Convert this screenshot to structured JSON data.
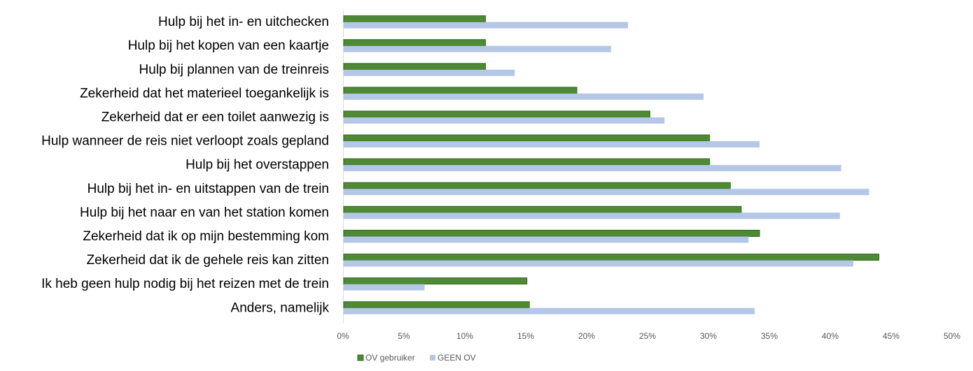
{
  "chart_data": {
    "type": "bar",
    "orientation": "horizontal",
    "categories": [
      "Hulp bij het in- en uitchecken",
      "Hulp bij het kopen van een kaartje",
      "Hulp bij plannen van de treinreis",
      "Zekerheid dat het materieel toegankelijk is",
      "Zekerheid dat er een toilet aanwezig is",
      "Hulp wanneer de reis niet verloopt zoals gepland",
      "Hulp bij het overstappen",
      "Hulp bij het in- en uitstappen van de trein",
      "Hulp bij het naar en van het station komen",
      "Zekerheid dat ik op mijn bestemming kom",
      "Zekerheid dat ik de gehele reis kan zitten",
      "Ik heb geen hulp nodig bij het reizen met de trein",
      "Anders, namelijk"
    ],
    "series": [
      {
        "name": "OV gebruiker",
        "color": "#4e8a34",
        "values": [
          11.7,
          11.7,
          11.7,
          19.2,
          25.2,
          30.1,
          30.1,
          31.8,
          32.7,
          34.2,
          44.0,
          15.1,
          15.3
        ]
      },
      {
        "name": "GEEN OV",
        "color": "#b4c7e7",
        "values": [
          23.4,
          22.0,
          14.1,
          29.6,
          26.4,
          34.2,
          40.9,
          43.2,
          40.8,
          33.3,
          41.9,
          6.7,
          33.8
        ]
      }
    ],
    "xlim": [
      0,
      50
    ],
    "xticks": [
      "0%",
      "5%",
      "10%",
      "15%",
      "20%",
      "25%",
      "30%",
      "35%",
      "40%",
      "45%",
      "50%"
    ],
    "legend_position": "bottom-left",
    "grid": false
  }
}
